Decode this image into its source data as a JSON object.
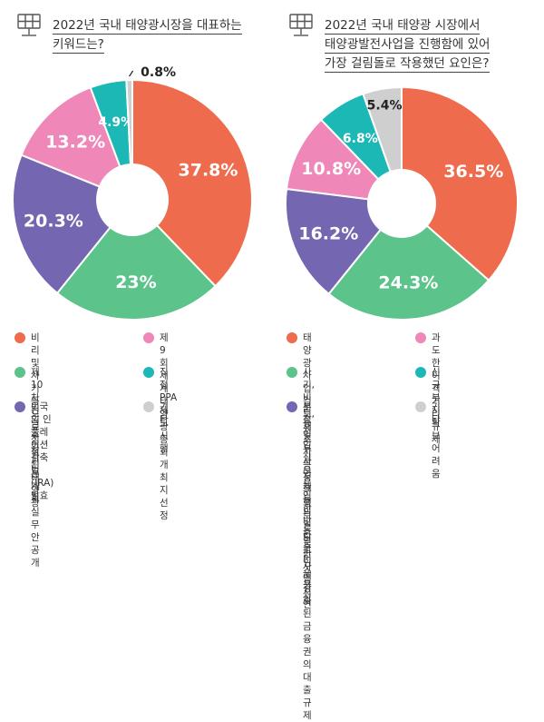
{
  "colors": {
    "orange": "#ee6c4d",
    "green": "#5cc38b",
    "purple": "#7566b1",
    "pink": "#ef87b8",
    "teal": "#1cb8b5",
    "gray": "#cfcfcf"
  },
  "icon": "solar-panel-icon",
  "left": {
    "title_lines": [
      "2022년 국내 태양광시장을 대표하는",
      "키워드는?"
    ],
    "legend": [
      {
        "label": "비리 및 사기 등으로\n점철된 태양광",
        "color": "#ee6c4d"
      },
      {
        "label": "제9회 세계태양광총회\n개최지 선정",
        "color": "#ef87b8"
      },
      {
        "label": "제10차 전력수급기본계획\n실무안 공개",
        "color": "#5cc38b"
      },
      {
        "label": "직접 PPA 제도 시행",
        "color": "#1cb8b5"
      },
      {
        "label": "미국의 인플레이션\n감축법(IRA) 발효",
        "color": "#7566b1"
      },
      {
        "label": "기타",
        "color": "#cfcfcf"
      }
    ]
  },
  "right": {
    "title_lines": [
      "2022년 국내 태양광 시장에서",
      "태양광발전사업을 진행함에 있어",
      "가장 걸림돌로 작용했던 요인은?"
    ],
    "legend": [
      {
        "label": "태양광사업 검토, 재조사 등\n정부 행보로 인한 사업 지연",
        "color": "#ee6c4d"
      },
      {
        "label": "과도한 이격거리\n규제",
        "color": "#ef87b8"
      },
      {
        "label": "사기, 비리 등 일부 사업체들의 일탈로\n인해 강화된 금융권의 대출 규제",
        "color": "#5cc38b"
      },
      {
        "label": "신규 부지 확보\n어려움",
        "color": "#1cb8b5"
      },
      {
        "label": "부정적 인식으로 인한 낮은\n주민수용성",
        "color": "#7566b1"
      },
      {
        "label": "기타",
        "color": "#cfcfcf"
      }
    ]
  },
  "chart_data": [
    {
      "type": "pie",
      "title": "2022년 국내 태양광시장을 대표하는 키워드는?",
      "slices": [
        {
          "label": "비리 및 사기 등으로 점철된 태양광",
          "value": 37.8,
          "display": "37.8%",
          "color": "#ee6c4d"
        },
        {
          "label": "제10차 전력수급기본계획 실무안 공개",
          "value": 23,
          "display": "23%",
          "color": "#5cc38b"
        },
        {
          "label": "미국의 인플레이션 감축법(IRA) 발효",
          "value": 20.3,
          "display": "20.3%",
          "color": "#7566b1"
        },
        {
          "label": "제9회 세계태양광총회 개최지 선정",
          "value": 13.2,
          "display": "13.2%",
          "color": "#ef87b8"
        },
        {
          "label": "직접 PPA 제도 시행",
          "value": 4.9,
          "display": "4.9%",
          "color": "#1cb8b5"
        },
        {
          "label": "기타",
          "value": 0.8,
          "display": "0.8%",
          "color": "#cfcfcf"
        }
      ]
    },
    {
      "type": "pie",
      "title": "2022년 국내 태양광 시장에서 태양광발전사업을 진행함에 있어 가장 걸림돌로 작용했던 요인은?",
      "slices": [
        {
          "label": "태양광사업 검토, 재조사 등 정부 행보로 인한 사업 지연",
          "value": 36.5,
          "display": "36.5%",
          "color": "#ee6c4d"
        },
        {
          "label": "사기, 비리 등 일부 사업체들의 일탈로 인해 강화된 금융권의 대출 규제",
          "value": 24.3,
          "display": "24.3%",
          "color": "#5cc38b"
        },
        {
          "label": "부정적 인식으로 인한 낮은 주민수용성",
          "value": 16.2,
          "display": "16.2%",
          "color": "#7566b1"
        },
        {
          "label": "과도한 이격거리 규제",
          "value": 10.8,
          "display": "10.8%",
          "color": "#ef87b8"
        },
        {
          "label": "신규 부지 확보 어려움",
          "value": 6.8,
          "display": "6.8%",
          "color": "#1cb8b5"
        },
        {
          "label": "기타",
          "value": 5.4,
          "display": "5.4%",
          "color": "#cfcfcf"
        }
      ]
    }
  ]
}
